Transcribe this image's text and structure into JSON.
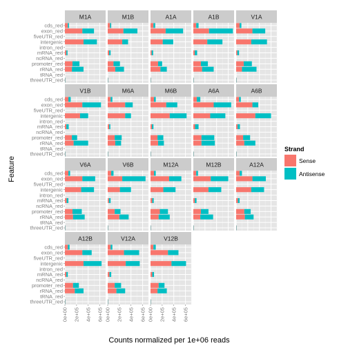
{
  "chart_data": {
    "type": "bar",
    "orientation": "horizontal",
    "stacked": true,
    "xlabel": "Counts normalized per 1e+06 reads",
    "ylabel": "Feature",
    "xlim": [
      0,
      700000
    ],
    "x_ticks": [
      "0e+00",
      "2e+05",
      "4e+05",
      "6e+05"
    ],
    "x_tick_values": [
      0,
      200000,
      400000,
      600000
    ],
    "grid": true,
    "legend": {
      "title": "Strand",
      "position": "right",
      "entries": [
        "Sense",
        "Antisense"
      ]
    },
    "colors": {
      "Sense": "#F8766D",
      "Antisense": "#00BFC4",
      "panel_bg": "#E5E5E5",
      "strip_bg": "#CCCCCC",
      "grid": "#FFFFFF"
    },
    "categories": [
      "cds_red",
      "exon_red",
      "fiveUTR_red",
      "intergenic",
      "intron_red",
      "mRNA_red",
      "ncRNA_red",
      "promoter_red",
      "rRNA_red",
      "tRNA_red",
      "threeUTR_red"
    ],
    "panels": [
      {
        "name": "M1A",
        "sense": [
          50000,
          300000,
          0,
          320000,
          0,
          25000,
          0,
          130000,
          120000,
          0,
          5000
        ],
        "antisense": [
          20000,
          200000,
          0,
          230000,
          0,
          20000,
          0,
          120000,
          200000,
          0,
          5000
        ]
      },
      {
        "name": "M1B",
        "sense": [
          40000,
          270000,
          0,
          250000,
          0,
          25000,
          0,
          100000,
          130000,
          0,
          5000
        ],
        "antisense": [
          20000,
          240000,
          0,
          100000,
          0,
          25000,
          0,
          110000,
          150000,
          0,
          5000
        ]
      },
      {
        "name": "A1A",
        "sense": [
          50000,
          260000,
          0,
          210000,
          0,
          20000,
          0,
          130000,
          170000,
          0,
          5000
        ],
        "antisense": [
          30000,
          300000,
          0,
          180000,
          0,
          25000,
          0,
          70000,
          110000,
          0,
          5000
        ]
      },
      {
        "name": "A1B",
        "sense": [
          50000,
          270000,
          0,
          240000,
          0,
          25000,
          0,
          130000,
          150000,
          0,
          5000
        ],
        "antisense": [
          40000,
          410000,
          0,
          260000,
          0,
          40000,
          0,
          120000,
          200000,
          0,
          5000
        ]
      },
      {
        "name": "V1A",
        "sense": [
          60000,
          280000,
          0,
          260000,
          0,
          20000,
          0,
          130000,
          100000,
          0,
          5000
        ],
        "antisense": [
          30000,
          220000,
          0,
          270000,
          0,
          30000,
          0,
          140000,
          250000,
          0,
          5000
        ]
      },
      {
        "name": "V1B",
        "sense": [
          60000,
          300000,
          0,
          260000,
          0,
          25000,
          0,
          120000,
          150000,
          0,
          5000
        ],
        "antisense": [
          40000,
          320000,
          0,
          140000,
          0,
          40000,
          0,
          90000,
          250000,
          0,
          5000
        ]
      },
      {
        "name": "M6A",
        "sense": [
          50000,
          300000,
          0,
          300000,
          0,
          25000,
          0,
          120000,
          130000,
          0,
          5000
        ],
        "antisense": [
          30000,
          130000,
          0,
          100000,
          0,
          20000,
          0,
          120000,
          100000,
          0,
          5000
        ]
      },
      {
        "name": "M6B",
        "sense": [
          60000,
          270000,
          0,
          330000,
          0,
          25000,
          0,
          120000,
          130000,
          0,
          5000
        ],
        "antisense": [
          30000,
          190000,
          0,
          290000,
          0,
          25000,
          0,
          100000,
          100000,
          0,
          5000
        ]
      },
      {
        "name": "A6A",
        "sense": [
          60000,
          350000,
          0,
          290000,
          0,
          30000,
          0,
          140000,
          140000,
          0,
          5000
        ],
        "antisense": [
          60000,
          300000,
          0,
          260000,
          0,
          60000,
          0,
          220000,
          230000,
          0,
          5000
        ]
      },
      {
        "name": "A6B",
        "sense": [
          50000,
          280000,
          0,
          330000,
          0,
          25000,
          0,
          120000,
          140000,
          0,
          5000
        ],
        "antisense": [
          30000,
          100000,
          0,
          270000,
          0,
          40000,
          0,
          120000,
          190000,
          0,
          5000
        ]
      },
      {
        "name": "V6A",
        "sense": [
          60000,
          300000,
          0,
          280000,
          0,
          30000,
          0,
          130000,
          140000,
          0,
          5000
        ],
        "antisense": [
          30000,
          220000,
          0,
          220000,
          0,
          30000,
          0,
          160000,
          200000,
          0,
          5000
        ]
      },
      {
        "name": "V6B",
        "sense": [
          60000,
          250000,
          0,
          210000,
          0,
          20000,
          0,
          120000,
          200000,
          0,
          5000
        ],
        "antisense": [
          40000,
          400000,
          0,
          190000,
          0,
          30000,
          0,
          100000,
          160000,
          0,
          5000
        ]
      },
      {
        "name": "M12A",
        "sense": [
          60000,
          320000,
          0,
          220000,
          0,
          30000,
          0,
          160000,
          140000,
          0,
          5000
        ],
        "antisense": [
          30000,
          210000,
          0,
          210000,
          0,
          25000,
          0,
          140000,
          190000,
          0,
          5000
        ]
      },
      {
        "name": "M12B",
        "sense": [
          50000,
          300000,
          0,
          260000,
          0,
          25000,
          0,
          130000,
          120000,
          0,
          5000
        ],
        "antisense": [
          30000,
          300000,
          0,
          220000,
          0,
          30000,
          0,
          130000,
          220000,
          0,
          5000
        ]
      },
      {
        "name": "A12A",
        "sense": [
          60000,
          280000,
          0,
          260000,
          0,
          30000,
          0,
          140000,
          150000,
          0,
          5000
        ],
        "antisense": [
          40000,
          230000,
          0,
          220000,
          0,
          30000,
          0,
          110000,
          150000,
          0,
          5000
        ]
      },
      {
        "name": "A12B",
        "sense": [
          50000,
          300000,
          0,
          320000,
          0,
          25000,
          0,
          140000,
          170000,
          0,
          5000
        ],
        "antisense": [
          30000,
          160000,
          0,
          310000,
          0,
          25000,
          0,
          100000,
          150000,
          0,
          5000
        ]
      },
      {
        "name": "V12A",
        "sense": [
          50000,
          280000,
          0,
          310000,
          0,
          30000,
          0,
          120000,
          150000,
          0,
          5000
        ],
        "antisense": [
          30000,
          260000,
          0,
          240000,
          0,
          30000,
          0,
          110000,
          150000,
          0,
          5000
        ]
      },
      {
        "name": "V12B",
        "sense": [
          50000,
          300000,
          0,
          360000,
          0,
          30000,
          0,
          140000,
          120000,
          0,
          5000
        ],
        "antisense": [
          40000,
          180000,
          0,
          250000,
          0,
          30000,
          0,
          100000,
          160000,
          0,
          5000
        ]
      }
    ]
  }
}
